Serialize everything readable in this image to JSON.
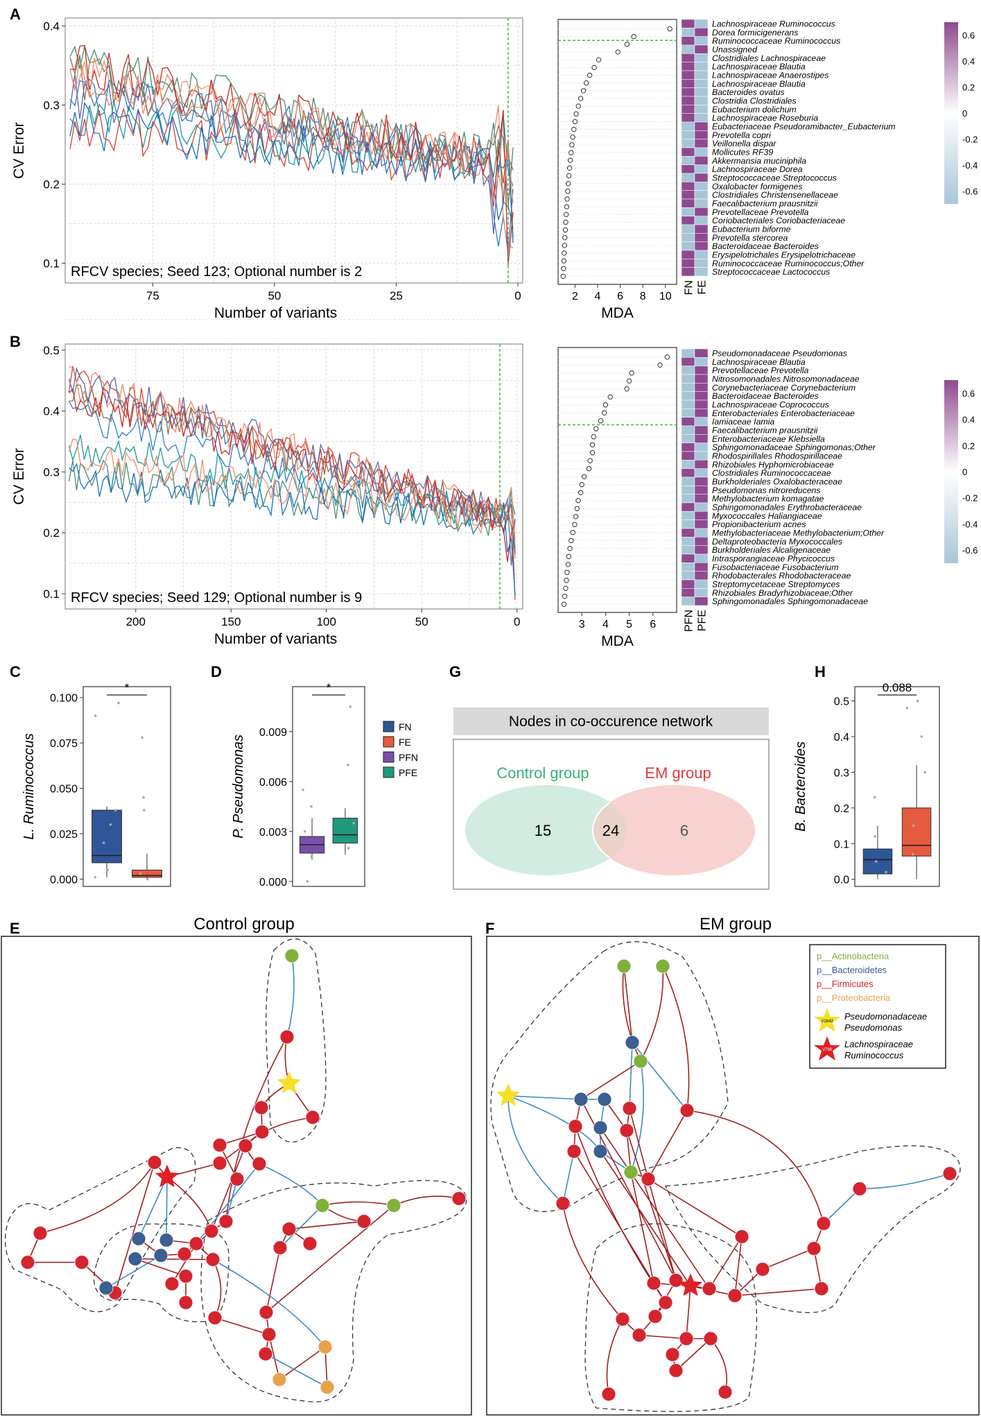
{
  "colors": {
    "fn": "#2f5697",
    "fe": "#e65a3f",
    "pfn": "#7a4fa8",
    "pfe": "#1f9a7e",
    "heat_high": "#8e4a8f",
    "heat_low": "#a8c6d8",
    "venn_left": "#d3ece2",
    "venn_right": "#f8d2d0",
    "venn_overlap": "#ead3c8",
    "actinobacteria": "#7fb13b",
    "bacteroidetes": "#3b5e93",
    "firmicutes": "#d4242e",
    "proteobacteria": "#e7a34a",
    "edge_red": "#a02020",
    "edge_blue": "#3c8cc3",
    "star_yellow": "#f6e02a",
    "star_red": "#e01f26"
  },
  "chart_data": [
    {
      "id": "A_line",
      "panel": "A",
      "type": "line",
      "title": "",
      "xlabel": "Number of variants",
      "ylabel": "CV Error",
      "xlim": [
        93,
        -1
      ],
      "ylim": [
        0.075,
        0.41
      ],
      "xticks": [
        75,
        50,
        25,
        0
      ],
      "yticks": [
        0.1,
        0.2,
        0.3,
        0.4
      ],
      "xtick_labels": [
        "75",
        "50",
        "25",
        "0"
      ],
      "ytick_labels": [
        "0.1",
        "0.2",
        "0.3",
        "0.4"
      ],
      "optimal_x": 2,
      "n_series": 10,
      "annotation": "RFCV species; Seed 123; Optional number is 2"
    },
    {
      "id": "A_mda",
      "panel": "A",
      "type": "scatter",
      "xlabel": "MDA",
      "xlim": [
        0.5,
        11
      ],
      "xticks": [
        2,
        4,
        6,
        8,
        10
      ],
      "xtick_labels": [
        "2",
        "4",
        "6",
        "8",
        "10"
      ],
      "cutoff_after_rank": 2,
      "values": [
        10.4,
        7.2,
        6.6,
        5.8,
        4.1,
        3.7,
        3.3,
        3.0,
        2.75,
        2.5,
        2.3,
        2.1,
        2.0,
        1.9,
        1.8,
        1.72,
        1.65,
        1.58,
        1.52,
        1.46,
        1.4,
        1.35,
        1.3,
        1.26,
        1.22,
        1.18,
        1.14,
        1.1,
        1.07,
        1.04,
        1.01,
        0.98,
        0.95
      ]
    },
    {
      "id": "A_heat",
      "panel": "A",
      "type": "heatmap",
      "columns": [
        "FN",
        "FE"
      ],
      "rows": [
        "Lachnospiraceae Ruminococcus",
        "Dorea formicigenerans",
        "Ruminococcaceae Ruminococcus",
        "Unassigned",
        "Clostridiales Lachnospiraceae",
        "Lachnospiraceae Blautia",
        "Lachnospiraceae Anaerostipes",
        "Lachnospiraceae Blautia",
        "Bacteroides ovatus",
        "Clostridia Clostridiales",
        "Eubacterium dolichum",
        "Lachnospiraceae Roseburia",
        "Eubacteriaceae Pseudoramibacter_Eubacterium",
        "Prevotella copri",
        "Veillonella dispar",
        "Mollicutes RF39",
        "Akkermansia muciniphila",
        "Lachnospiraceae Dorea",
        "Streptococcaceae Streptococcus",
        "Oxalobacter formigenes",
        "Clostridiales Christensenellaceae",
        "Faecalibacterium prausnitzii",
        "Prevotellaceae Prevotella",
        "Coriobacteriales Coriobacteriaceae",
        "Eubacterium biforme",
        "Prevotella stercorea",
        "Bacteroidaceae Bacteroides",
        "Erysipelotrichales Erysipelotrichaceae",
        "Ruminococcaceae Ruminococcus;Other",
        "Streptococcaceae Lactococcus"
      ],
      "values": [
        [
          0.7,
          -0.7
        ],
        [
          -0.7,
          0.7
        ],
        [
          0.7,
          -0.7
        ],
        [
          -0.7,
          0.7
        ],
        [
          0.7,
          -0.7
        ],
        [
          0.7,
          -0.7
        ],
        [
          0.7,
          -0.7
        ],
        [
          0.7,
          -0.7
        ],
        [
          0.7,
          -0.7
        ],
        [
          0.7,
          -0.7
        ],
        [
          0.7,
          -0.7
        ],
        [
          0.7,
          -0.7
        ],
        [
          -0.7,
          0.7
        ],
        [
          -0.7,
          0.7
        ],
        [
          -0.7,
          0.7
        ],
        [
          0.7,
          -0.7
        ],
        [
          -0.7,
          0.7
        ],
        [
          0.7,
          -0.7
        ],
        [
          -0.7,
          0.7
        ],
        [
          0.7,
          -0.7
        ],
        [
          0.7,
          -0.7
        ],
        [
          0.7,
          -0.7
        ],
        [
          -0.7,
          0.7
        ],
        [
          0.7,
          -0.7
        ],
        [
          -0.7,
          0.7
        ],
        [
          -0.7,
          0.7
        ],
        [
          -0.7,
          0.7
        ],
        [
          0.7,
          -0.7
        ],
        [
          0.7,
          -0.7
        ],
        [
          0.7,
          -0.7
        ]
      ],
      "legend": [
        0.6,
        0.4,
        0.2,
        0,
        -0.2,
        -0.4,
        -0.6
      ],
      "legend_labels": [
        "0.6",
        "0.4",
        "0.2",
        "0",
        "-0.2",
        "-0.4",
        "-0.6"
      ]
    },
    {
      "id": "B_line",
      "panel": "B",
      "type": "line",
      "title": "",
      "xlabel": "Number of variants",
      "ylabel": "CV Error",
      "xlim": [
        237,
        -3
      ],
      "ylim": [
        0.075,
        0.51
      ],
      "xticks": [
        200,
        150,
        100,
        50,
        0
      ],
      "yticks": [
        0.1,
        0.2,
        0.3,
        0.4,
        0.5
      ],
      "xtick_labels": [
        "200",
        "150",
        "100",
        "50",
        "0"
      ],
      "ytick_labels": [
        "0.1",
        "0.2",
        "0.3",
        "0.4",
        "0.5"
      ],
      "optimal_x": 9,
      "n_series": 10,
      "annotation": "RFCV species; Seed 129; Optional number is 9"
    },
    {
      "id": "B_mda",
      "panel": "B",
      "type": "scatter",
      "xlabel": "MDA",
      "xlim": [
        2.0,
        7.0
      ],
      "xticks": [
        3,
        4,
        5,
        6
      ],
      "xtick_labels": [
        "3",
        "4",
        "5",
        "6"
      ],
      "cutoff_after_rank": 9,
      "values": [
        6.6,
        6.3,
        5.1,
        5.0,
        4.9,
        4.2,
        4.0,
        3.95,
        3.8,
        3.6,
        3.5,
        3.45,
        3.45,
        3.35,
        3.3,
        3.1,
        3.0,
        2.95,
        2.85,
        2.8,
        2.75,
        2.7,
        2.62,
        2.55,
        2.5,
        2.45,
        2.42,
        2.38,
        2.35,
        2.32,
        2.28,
        2.25
      ]
    },
    {
      "id": "B_heat",
      "panel": "B",
      "type": "heatmap",
      "columns": [
        "PFN",
        "PFE"
      ],
      "rows": [
        "Pseudomonadaceae Pseudomonas",
        "Lachnospiraceae Blautia",
        "Prevotellaceae Prevotella",
        "Nitrosomonadales Nitrosomonadaceae",
        "Corynebacteriaceae Corynebacterium",
        "Bacteroidaceae Bacteroides",
        "Lachnospiraceae Coprococcus",
        "Enterobacteriales Enterobacteriaceae",
        "Iamiaceae Iamia",
        "Faecalibacterium prausnitzii",
        "Enterobacteriaceae Klebsiella",
        "Sphingomonadaceae Sphingomonas;Other",
        "Rhodospirillales Rhodospirillaceae",
        "Rhizobiales Hyphomicrobiaceae",
        "Clostridiales Ruminococcaceae",
        "Burkholderiales Oxalobacteraceae",
        "Pseudomonas nitroreducens",
        "Methylobacterium komagatae",
        "Sphingomonadales Erythrobacteraceae",
        "Myxococcales Haliangiaceae",
        "Propionibacterium acnes",
        "Methylobacteriaceae Methylobacterium;Other",
        "Deltaproteobacteria Myxococcales",
        "Burkholderiales Alcaligenaceae",
        "Intrasporangiaceae Phycicoccus",
        "Fusobacteriaceae Fusobacterium",
        "Rhodobacterales Rhodobacteraceae",
        "Streptomycetaceae Streptomyces",
        "Rhizobiales Bradyrhizobiaceae;Other",
        "Sphingomonadales Sphingomonadaceae"
      ],
      "values": [
        [
          -0.7,
          0.7
        ],
        [
          0.7,
          -0.7
        ],
        [
          -0.7,
          0.7
        ],
        [
          -0.7,
          0.7
        ],
        [
          -0.7,
          0.7
        ],
        [
          -0.7,
          0.7
        ],
        [
          -0.7,
          0.7
        ],
        [
          -0.7,
          0.7
        ],
        [
          0.7,
          -0.7
        ],
        [
          -0.7,
          0.7
        ],
        [
          -0.7,
          0.7
        ],
        [
          0.7,
          -0.7
        ],
        [
          0.7,
          -0.7
        ],
        [
          -0.7,
          0.7
        ],
        [
          0.7,
          -0.7
        ],
        [
          -0.7,
          0.7
        ],
        [
          -0.7,
          0.7
        ],
        [
          -0.7,
          0.7
        ],
        [
          0.7,
          -0.7
        ],
        [
          -0.7,
          0.7
        ],
        [
          -0.7,
          0.7
        ],
        [
          0.7,
          -0.7
        ],
        [
          -0.7,
          0.7
        ],
        [
          -0.7,
          0.7
        ],
        [
          0.7,
          -0.7
        ],
        [
          -0.7,
          0.7
        ],
        [
          -0.7,
          0.7
        ],
        [
          0.7,
          -0.7
        ],
        [
          0.7,
          -0.7
        ],
        [
          -0.7,
          0.7
        ]
      ],
      "legend": [
        0.6,
        0.4,
        0.2,
        0,
        -0.2,
        -0.4,
        -0.6
      ],
      "legend_labels": [
        "0.6",
        "0.4",
        "0.2",
        "0",
        "-0.2",
        "-0.4",
        "-0.6"
      ]
    },
    {
      "id": "C_box",
      "panel": "C",
      "type": "box",
      "ylabel": "L. Ruminococcus",
      "ylim": [
        -0.004,
        0.106
      ],
      "yticks": [
        0,
        0.025,
        0.05,
        0.075,
        0.1
      ],
      "ytick_labels": [
        "0.000",
        "0.025",
        "0.050",
        "0.075",
        "0.100"
      ],
      "significance": "*",
      "boxes": [
        {
          "group": "FN",
          "q1": 0.009,
          "median": 0.013,
          "q3": 0.038,
          "lower": 0.001,
          "upper": 0.04,
          "points": [
            0.097,
            0.09,
            0.001,
            0.005,
            0.02,
            0.03,
            0.038
          ]
        },
        {
          "group": "FE",
          "q1": 0.001,
          "median": 0.002,
          "q3": 0.005,
          "lower": 0.0,
          "upper": 0.014,
          "points": [
            0.078,
            0.045,
            0.038,
            0.003,
            0.0
          ]
        }
      ]
    },
    {
      "id": "D_box",
      "panel": "D",
      "type": "box",
      "ylabel": "P. Pseudomonas",
      "ylim": [
        -0.0003,
        0.0117
      ],
      "yticks": [
        0,
        0.003,
        0.006,
        0.009
      ],
      "ytick_labels": [
        "0.000",
        "0.003",
        "0.006",
        "0.009"
      ],
      "significance": "*",
      "boxes": [
        {
          "group": "PFN",
          "q1": 0.0017,
          "median": 0.0022,
          "q3": 0.0027,
          "lower": 0.0013,
          "upper": 0.0038,
          "points": [
            0.0055,
            0.0045,
            0.0,
            0.0015,
            0.003
          ]
        },
        {
          "group": "PFE",
          "q1": 0.0023,
          "median": 0.0028,
          "q3": 0.0038,
          "lower": 0.0016,
          "upper": 0.0044,
          "points": [
            0.0105,
            0.007,
            0.002,
            0.0035
          ]
        }
      ],
      "legend": [
        {
          "label": "FN",
          "color": "#2f5697"
        },
        {
          "label": "FE",
          "color": "#e65a3f"
        },
        {
          "label": "PFN",
          "color": "#7a4fa8"
        },
        {
          "label": "PFE",
          "color": "#1f9a7e"
        }
      ]
    },
    {
      "id": "H_box",
      "panel": "H",
      "type": "box",
      "ylabel": "B. Bacteroides",
      "ylim": [
        -0.02,
        0.54
      ],
      "yticks": [
        0,
        0.1,
        0.2,
        0.3,
        0.4,
        0.5
      ],
      "ytick_labels": [
        "0.0",
        "0.1",
        "0.2",
        "0.3",
        "0.4",
        "0.5"
      ],
      "significance": "0.088",
      "boxes": [
        {
          "group": "FN",
          "q1": 0.015,
          "median": 0.055,
          "q3": 0.085,
          "lower": 0.0,
          "upper": 0.15,
          "points": [
            0.23,
            0.12,
            0.05,
            0.02
          ]
        },
        {
          "group": "FE",
          "q1": 0.065,
          "median": 0.095,
          "q3": 0.2,
          "lower": 0.0,
          "upper": 0.32,
          "points": [
            0.5,
            0.48,
            0.4,
            0.3,
            0.15,
            0.07
          ]
        }
      ]
    }
  ],
  "panel_labels": {
    "A": "A",
    "B": "B",
    "C": "C",
    "D": "D",
    "E": "E",
    "F": "F",
    "G": "G",
    "H": "H"
  },
  "venn": {
    "title": "Nodes in co-occurence network",
    "left_label": "Control group",
    "right_label": "EM group",
    "left_only": 15,
    "overlap": 24,
    "right_only": 6
  },
  "network_E": {
    "title": "Control group"
  },
  "network_F": {
    "title": "EM group"
  },
  "network_legend": [
    {
      "label": "p__Actinobacteria",
      "color": "#7fb13b"
    },
    {
      "label": "p__Bacteroidetes",
      "color": "#3b5e93"
    },
    {
      "label": "p__Firmicutes",
      "color": "#d4242e"
    },
    {
      "label": "p__Proteobacteria",
      "color": "#e7a34a"
    }
  ],
  "star_legend": [
    {
      "id": "V1642",
      "line1": "Pseudomonadaceae",
      "line2": "Pseudomonas",
      "color": "#f6e02a"
    },
    {
      "id": "V799",
      "line1": "Lachnospiraceae",
      "line2": "Ruminococcus",
      "color": "#e01f26"
    }
  ]
}
